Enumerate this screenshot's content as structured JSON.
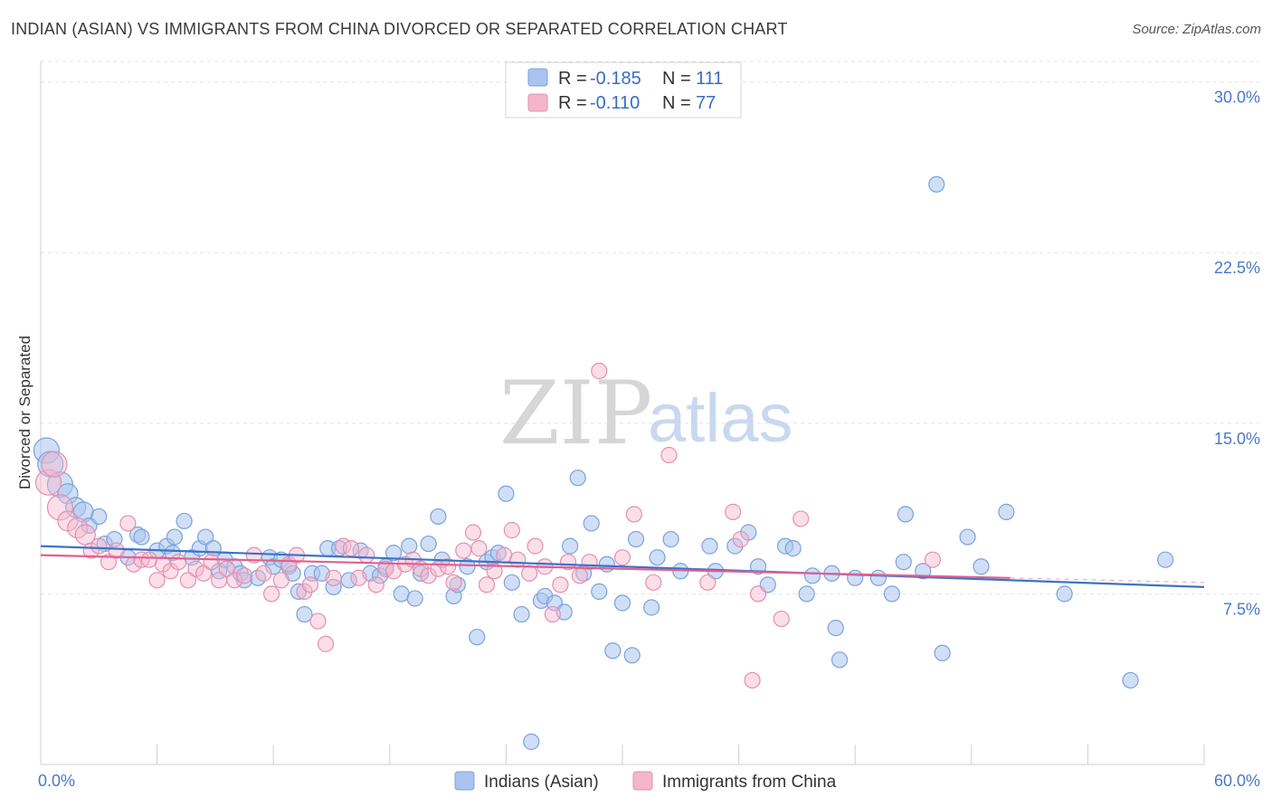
{
  "title": "INDIAN (ASIAN) VS IMMIGRANTS FROM CHINA DIVORCED OR SEPARATED CORRELATION CHART",
  "source": "Source: ZipAtlas.com",
  "watermark": {
    "zip": "ZIP",
    "atlas": "atlas"
  },
  "colors": {
    "blue": "#3b73c8",
    "blue_fill": "#a9c4ee",
    "pink": "#e0608f",
    "pink_fill": "#f4b6cb",
    "tick": "#4a78c8"
  },
  "legend": {
    "r_label": "R =",
    "n_label": "N =",
    "items": [
      {
        "r": "-0.185",
        "n": "111"
      },
      {
        "r": "-0.110",
        "n": "77"
      }
    ]
  },
  "chart_data": {
    "type": "scatter",
    "title": "INDIAN (ASIAN) VS IMMIGRANTS FROM CHINA DIVORCED OR SEPARATED CORRELATION CHART",
    "xlabel": "",
    "ylabel": "Divorced or Separated",
    "xlim": [
      0,
      60
    ],
    "ylim": [
      0,
      30.9
    ],
    "x_tick_labels": [
      "0.0%",
      "60.0%"
    ],
    "y_ticks": [
      7.5,
      15.0,
      22.5,
      30.0
    ],
    "y_tick_labels": [
      "7.5%",
      "15.0%",
      "22.5%",
      "30.0%"
    ],
    "grid": true,
    "legend_position": "top-center",
    "series": [
      {
        "name": "Indians (Asian)",
        "color": "#3b73c8",
        "trend": {
          "x": [
            0,
            60
          ],
          "y": [
            9.6,
            7.8
          ]
        },
        "points": [
          [
            0.3,
            13.8
          ],
          [
            0.5,
            13.2
          ],
          [
            1.0,
            12.3
          ],
          [
            1.4,
            11.9
          ],
          [
            1.8,
            11.3
          ],
          [
            2.2,
            11.1
          ],
          [
            2.5,
            10.5
          ],
          [
            3.0,
            10.9
          ],
          [
            3.3,
            9.7
          ],
          [
            3.8,
            9.9
          ],
          [
            4.5,
            9.1
          ],
          [
            5.0,
            10.1
          ],
          [
            5.2,
            10.0
          ],
          [
            6.0,
            9.4
          ],
          [
            6.5,
            9.6
          ],
          [
            6.8,
            9.3
          ],
          [
            6.9,
            10.0
          ],
          [
            7.4,
            10.7
          ],
          [
            7.8,
            9.1
          ],
          [
            8.2,
            9.5
          ],
          [
            8.5,
            10.0
          ],
          [
            8.9,
            9.5
          ],
          [
            9.2,
            8.5
          ],
          [
            9.5,
            9.0
          ],
          [
            10.0,
            8.7
          ],
          [
            10.3,
            8.4
          ],
          [
            10.5,
            8.1
          ],
          [
            11.2,
            8.2
          ],
          [
            11.8,
            9.1
          ],
          [
            12.0,
            8.7
          ],
          [
            12.4,
            9.0
          ],
          [
            12.8,
            8.7
          ],
          [
            13.0,
            8.4
          ],
          [
            13.3,
            7.6
          ],
          [
            13.6,
            6.6
          ],
          [
            14.0,
            8.4
          ],
          [
            14.5,
            8.4
          ],
          [
            14.8,
            9.5
          ],
          [
            15.1,
            7.8
          ],
          [
            15.4,
            9.5
          ],
          [
            15.9,
            8.1
          ],
          [
            16.5,
            9.4
          ],
          [
            17.0,
            8.4
          ],
          [
            17.5,
            8.3
          ],
          [
            17.8,
            8.7
          ],
          [
            18.2,
            9.3
          ],
          [
            18.6,
            7.5
          ],
          [
            19.0,
            9.6
          ],
          [
            19.3,
            7.3
          ],
          [
            19.6,
            8.4
          ],
          [
            20.0,
            9.7
          ],
          [
            20.5,
            10.9
          ],
          [
            20.7,
            9.0
          ],
          [
            21.3,
            7.4
          ],
          [
            21.5,
            7.9
          ],
          [
            22.0,
            8.7
          ],
          [
            22.5,
            5.6
          ],
          [
            23.0,
            8.9
          ],
          [
            23.3,
            9.1
          ],
          [
            23.6,
            9.3
          ],
          [
            24.0,
            11.9
          ],
          [
            24.3,
            8.0
          ],
          [
            24.8,
            6.6
          ],
          [
            25.3,
            1.0
          ],
          [
            25.8,
            7.2
          ],
          [
            26.0,
            7.4
          ],
          [
            26.5,
            7.1
          ],
          [
            27.0,
            6.7
          ],
          [
            27.3,
            9.6
          ],
          [
            27.7,
            12.6
          ],
          [
            28.0,
            8.4
          ],
          [
            28.4,
            10.6
          ],
          [
            28.8,
            7.6
          ],
          [
            29.2,
            8.8
          ],
          [
            29.5,
            5.0
          ],
          [
            30.0,
            7.1
          ],
          [
            30.5,
            4.8
          ],
          [
            30.7,
            9.9
          ],
          [
            31.5,
            6.9
          ],
          [
            31.8,
            9.1
          ],
          [
            32.5,
            9.9
          ],
          [
            33.0,
            8.5
          ],
          [
            34.5,
            9.6
          ],
          [
            34.8,
            8.5
          ],
          [
            35.8,
            9.6
          ],
          [
            36.5,
            10.2
          ],
          [
            37.0,
            8.7
          ],
          [
            37.5,
            7.9
          ],
          [
            38.4,
            9.6
          ],
          [
            38.8,
            9.5
          ],
          [
            39.5,
            7.5
          ],
          [
            39.8,
            8.3
          ],
          [
            40.8,
            8.4
          ],
          [
            41.0,
            6.0
          ],
          [
            41.2,
            4.6
          ],
          [
            42.0,
            8.2
          ],
          [
            43.2,
            8.2
          ],
          [
            43.9,
            7.5
          ],
          [
            44.5,
            8.9
          ],
          [
            44.6,
            11.0
          ],
          [
            45.5,
            8.5
          ],
          [
            46.2,
            25.5
          ],
          [
            46.5,
            4.9
          ],
          [
            47.8,
            10.0
          ],
          [
            48.5,
            8.7
          ],
          [
            49.8,
            11.1
          ],
          [
            52.8,
            7.5
          ],
          [
            56.2,
            3.7
          ],
          [
            58.0,
            9.0
          ]
        ]
      },
      {
        "name": "Immigrants from China",
        "color": "#e0608f",
        "trend": {
          "x": [
            0,
            50
          ],
          "y": [
            9.2,
            8.2
          ]
        },
        "points": [
          [
            0.4,
            12.4
          ],
          [
            0.7,
            13.2
          ],
          [
            1.0,
            11.3
          ],
          [
            1.4,
            10.7
          ],
          [
            1.9,
            10.4
          ],
          [
            2.3,
            10.1
          ],
          [
            2.6,
            9.4
          ],
          [
            3.0,
            9.6
          ],
          [
            3.5,
            8.9
          ],
          [
            3.9,
            9.4
          ],
          [
            4.5,
            10.6
          ],
          [
            4.8,
            8.8
          ],
          [
            5.2,
            9.0
          ],
          [
            5.6,
            9.0
          ],
          [
            6.0,
            8.1
          ],
          [
            6.3,
            8.8
          ],
          [
            6.7,
            8.5
          ],
          [
            7.1,
            8.9
          ],
          [
            7.6,
            8.1
          ],
          [
            8.0,
            8.6
          ],
          [
            8.4,
            8.4
          ],
          [
            8.8,
            8.9
          ],
          [
            9.2,
            8.1
          ],
          [
            9.6,
            8.6
          ],
          [
            10.0,
            8.1
          ],
          [
            10.5,
            8.3
          ],
          [
            11.0,
            9.2
          ],
          [
            11.5,
            8.4
          ],
          [
            11.9,
            7.5
          ],
          [
            12.4,
            8.1
          ],
          [
            12.8,
            8.8
          ],
          [
            13.2,
            9.2
          ],
          [
            13.6,
            7.6
          ],
          [
            13.9,
            7.9
          ],
          [
            14.3,
            6.3
          ],
          [
            14.7,
            5.3
          ],
          [
            15.1,
            8.2
          ],
          [
            15.6,
            9.6
          ],
          [
            16.0,
            9.5
          ],
          [
            16.4,
            8.2
          ],
          [
            16.8,
            9.2
          ],
          [
            17.3,
            7.9
          ],
          [
            17.8,
            8.6
          ],
          [
            18.2,
            8.5
          ],
          [
            18.8,
            8.8
          ],
          [
            19.2,
            9.0
          ],
          [
            19.6,
            8.6
          ],
          [
            20.0,
            8.3
          ],
          [
            20.5,
            8.6
          ],
          [
            21.0,
            8.7
          ],
          [
            21.3,
            8.0
          ],
          [
            21.8,
            9.4
          ],
          [
            22.3,
            10.2
          ],
          [
            22.6,
            9.5
          ],
          [
            23.0,
            7.9
          ],
          [
            23.4,
            8.5
          ],
          [
            23.9,
            9.2
          ],
          [
            24.3,
            10.3
          ],
          [
            24.6,
            9.0
          ],
          [
            25.2,
            8.4
          ],
          [
            25.5,
            9.6
          ],
          [
            26.0,
            8.7
          ],
          [
            26.4,
            6.6
          ],
          [
            26.8,
            7.9
          ],
          [
            27.2,
            8.9
          ],
          [
            27.8,
            8.3
          ],
          [
            28.3,
            8.9
          ],
          [
            28.8,
            17.3
          ],
          [
            30.0,
            9.1
          ],
          [
            30.6,
            11.0
          ],
          [
            31.6,
            8.0
          ],
          [
            32.4,
            13.6
          ],
          [
            34.4,
            8.0
          ],
          [
            35.7,
            11.1
          ],
          [
            36.1,
            9.9
          ],
          [
            36.7,
            3.7
          ],
          [
            37.0,
            7.5
          ],
          [
            38.2,
            6.4
          ],
          [
            39.2,
            10.8
          ],
          [
            46.0,
            9.0
          ]
        ]
      }
    ]
  },
  "bottom_legend": [
    "Indians (Asian)",
    "Immigrants from China"
  ]
}
